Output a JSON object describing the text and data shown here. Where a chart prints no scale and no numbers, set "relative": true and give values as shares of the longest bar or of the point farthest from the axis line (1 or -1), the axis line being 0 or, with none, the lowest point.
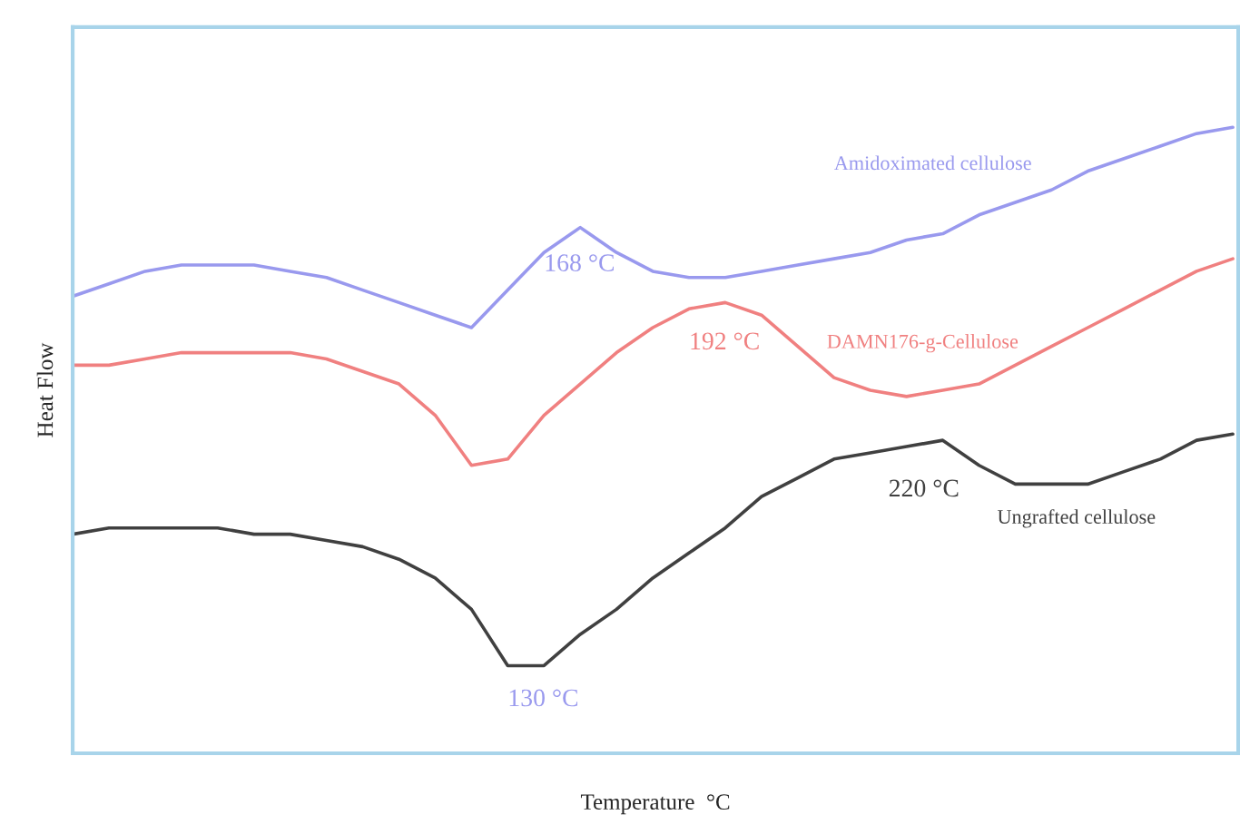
{
  "chart_data": {
    "type": "line",
    "relative": true,
    "xlabel": "Temperature  °C",
    "ylabel": "Heat Flow",
    "legend": false,
    "categories": [
      null,
      null,
      null,
      null,
      null,
      null,
      null,
      null,
      null,
      null,
      null,
      null,
      null,
      null,
      null,
      null,
      null,
      null,
      null,
      null,
      null,
      null,
      null,
      null,
      null,
      null,
      null,
      null,
      null,
      null,
      null,
      null,
      null
    ],
    "series": [
      {
        "name": "Amidoximated cellulose",
        "color": "#9999ee",
        "values": [
          0.73,
          0.75,
          0.77,
          0.78,
          0.78,
          0.78,
          0.77,
          0.76,
          0.74,
          0.72,
          0.7,
          0.68,
          0.74,
          0.8,
          0.84,
          0.8,
          0.77,
          0.76,
          0.76,
          0.77,
          0.78,
          0.79,
          0.8,
          0.82,
          0.83,
          0.86,
          0.88,
          0.9,
          0.93,
          0.95,
          0.97,
          0.99,
          1.0
        ]
      },
      {
        "name": "DAMN176-g-Cellulose",
        "color": "#f08080",
        "values": [
          0.62,
          0.62,
          0.63,
          0.64,
          0.64,
          0.64,
          0.64,
          0.63,
          0.61,
          0.59,
          0.54,
          0.46,
          0.47,
          0.54,
          0.59,
          0.64,
          0.68,
          0.71,
          0.72,
          0.7,
          0.65,
          0.6,
          0.58,
          0.57,
          0.58,
          0.59,
          0.62,
          0.65,
          0.68,
          0.71,
          0.74,
          0.77,
          0.79
        ]
      },
      {
        "name": "Ungrafted cellulose",
        "color": "#404040",
        "values": [
          0.35,
          0.36,
          0.36,
          0.36,
          0.36,
          0.35,
          0.35,
          0.34,
          0.33,
          0.31,
          0.28,
          0.23,
          0.14,
          0.14,
          0.19,
          0.23,
          0.28,
          0.32,
          0.36,
          0.41,
          0.44,
          0.47,
          0.48,
          0.49,
          0.5,
          0.46,
          0.43,
          0.43,
          0.43,
          0.45,
          0.47,
          0.5,
          0.51
        ]
      }
    ],
    "annotations": [
      "168 °C",
      "192 °C",
      "220 °C",
      "130 °C"
    ]
  }
}
